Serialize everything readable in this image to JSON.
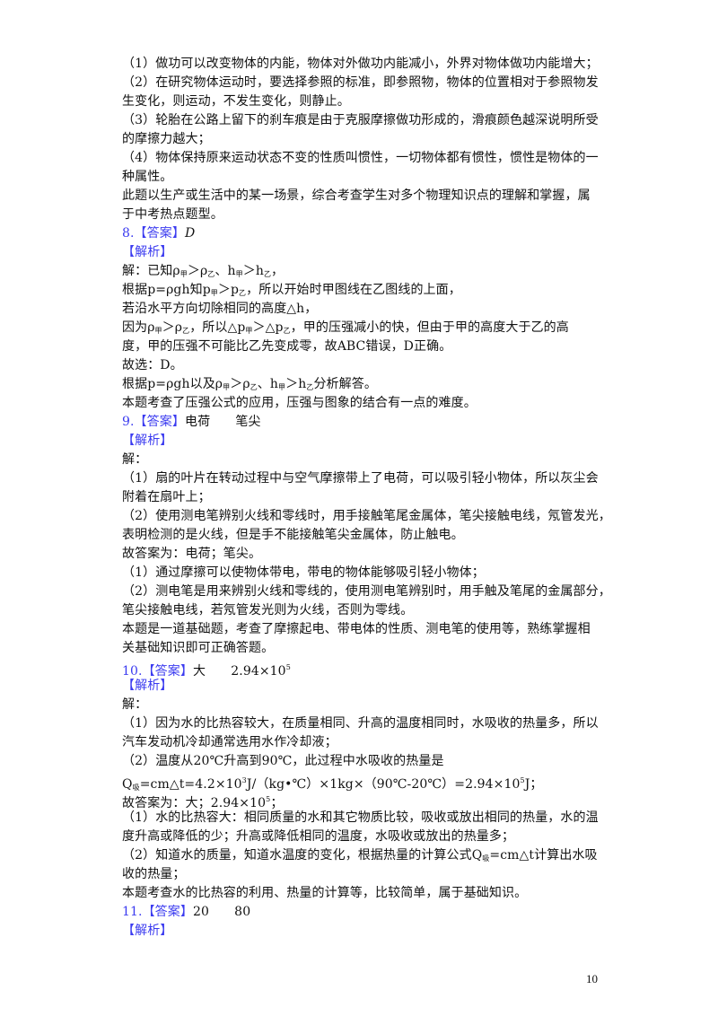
{
  "page_number": "10",
  "colors": {
    "heading": "#3b3bf0",
    "text": "#111111"
  },
  "lines": [
    [
      "（1）做功可以改变物体的内能，物体对外做功内能减小，外界对物体做功内能增大；"
    ],
    [
      "（2）在研究物体运动时，要选择参照的标准，即参照物，物体的位置相对于参照物发"
    ],
    [
      "生变化，则运动，不发生变化，则静止。"
    ],
    [
      "（3）轮胎在公路上留下的刹车痕是由于克服摩擦做功形成的，滑痕颜色越深说明所受"
    ],
    [
      "的摩擦力越大；"
    ],
    [
      "（4）物体保持原来运动状态不变的性质叫惯性，一切物体都有惯性，惯性是物体的一"
    ],
    [
      "种属性。"
    ],
    [
      "此题以生产或生活中的某一场景，综合考查学生对多个物理知识点的理解和掌握，属"
    ],
    [
      "于中考热点题型。"
    ],
    [
      {
        "t": "8.【答案】",
        "c": "blue"
      },
      {
        "t": "D",
        "c": "it"
      }
    ],
    [
      {
        "t": "【解析】",
        "c": "blue"
      }
    ],
    [
      "解：已知ρ",
      {
        "t": "甲",
        "c": "sub"
      },
      "＞ρ",
      {
        "t": "乙",
        "c": "sub"
      },
      "、h",
      {
        "t": "甲",
        "c": "sub"
      },
      "＞h",
      {
        "t": "乙",
        "c": "sub"
      },
      "，"
    ],
    [
      "根据p=ρgh知p",
      {
        "t": "甲",
        "c": "sub"
      },
      "＞p",
      {
        "t": "乙",
        "c": "sub"
      },
      "，所以开始时甲图线在乙图线的上面，"
    ],
    [
      "若沿水平方向切除相同的高度△h，"
    ],
    [
      "因为ρ",
      {
        "t": "甲",
        "c": "sub"
      },
      "＞ρ",
      {
        "t": "乙",
        "c": "sub"
      },
      "，所以△p",
      {
        "t": "甲",
        "c": "sub"
      },
      "＞△p",
      {
        "t": "乙",
        "c": "sub"
      },
      "，甲的压强减小的快，但由于甲的高度大于乙的高"
    ],
    [
      "度，甲的压强不可能比乙先变成零，故ABC错误，D正确。"
    ],
    [
      "故选：D。"
    ],
    [
      "根据p=ρgh以及ρ",
      {
        "t": "甲",
        "c": "sub"
      },
      "＞ρ",
      {
        "t": "乙",
        "c": "sub"
      },
      "、h",
      {
        "t": "甲",
        "c": "sub"
      },
      "＞h",
      {
        "t": "乙",
        "c": "sub"
      },
      "分析解答。"
    ],
    [
      "本题考查了压强公式的应用，压强与图象的结合有一点的难度。"
    ],
    [
      {
        "t": "9.【答案】",
        "c": "blue"
      },
      "电荷　　笔尖"
    ],
    [
      {
        "t": "【解析】",
        "c": "blue"
      }
    ],
    [
      "解："
    ],
    [
      "（1）扇的叶片在转动过程中与空气摩擦带上了电荷，可以吸引轻小物体，所以灰尘会"
    ],
    [
      "附着在扇叶上；"
    ],
    [
      "（2）使用测电笔辨别火线和零线时，用手接触笔尾金属体，笔尖接触电线，氖管发光，"
    ],
    [
      "表明检测的是火线，但是手不能接触笔尖金属体，防止触电。"
    ],
    [
      "故答案为：电荷；笔尖。"
    ],
    [
      "（1）通过摩擦可以使物体带电，带电的物体能够吸引轻小物体；"
    ],
    [
      "（2）测电笔是用来辨别火线和零线的，使用测电笔辨别时，用手触及笔尾的金属部分，"
    ],
    [
      "笔尖接触电线，若氖管发光则为火线，否则为零线。"
    ],
    [
      "本题是一道基础题，考查了摩擦起电、带电体的性质、测电笔的使用等，熟练掌握相"
    ],
    [
      "关基础知识即可正确答题。"
    ],
    [
      {
        "t": "10.【答案】",
        "c": "blue"
      },
      "大　　2.94×10",
      {
        "t": "5",
        "c": "sup"
      }
    ],
    [
      {
        "t": "【解析】",
        "c": "blue"
      }
    ],
    [
      "解："
    ],
    [
      "（1）因为水的比热容较大，在质量相同、升高的温度相同时，水吸收的热量多，所以"
    ],
    [
      "汽车发动机冷却通常选用水作冷却液；"
    ],
    [
      "（2）温度从20℃升高到90℃，此过程中水吸收的热量是"
    ],
    [
      "Q",
      {
        "t": "吸",
        "c": "sub"
      },
      "=cm△t=4.2×10",
      {
        "t": "3",
        "c": "sup"
      },
      "J/（kg•℃）×1kg×（90℃-20℃）=2.94×10",
      {
        "t": "5",
        "c": "sup"
      },
      "J；"
    ],
    [
      "故答案为：大；2.94×10",
      {
        "t": "5",
        "c": "sup"
      },
      "；"
    ],
    [
      "（1）水的比热容大：相同质量的水和其它物质比较，吸收或放出相同的热量，水的温"
    ],
    [
      "度升高或降低的少；升高或降低相同的温度，水吸收或放出的热量多；"
    ],
    [
      "（2）知道水的质量，知道水温度的变化，根据热量的计算公式Q",
      {
        "t": "吸",
        "c": "sub"
      },
      "=cm△t计算出水吸"
    ],
    [
      "收的热量；"
    ],
    [
      "本题考查水的比热容的利用、热量的计算等，比较简单，属于基础知识。"
    ],
    [
      {
        "t": "11.【答案】",
        "c": "blue"
      },
      "20　　80"
    ],
    [
      {
        "t": "【解析】",
        "c": "blue"
      }
    ]
  ]
}
